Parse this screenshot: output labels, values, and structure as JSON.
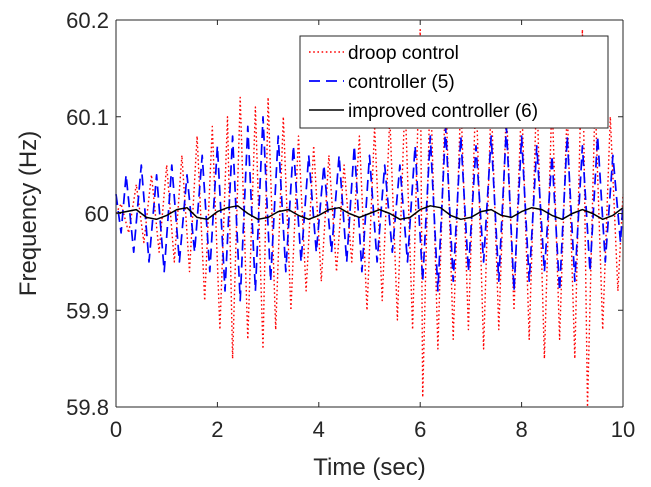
{
  "chart_data": {
    "type": "line",
    "title": "",
    "xlabel": "Time (sec)",
    "ylabel": "Frequency (Hz)",
    "xlim": [
      0,
      10
    ],
    "ylim": [
      59.8,
      60.2
    ],
    "xticks": [
      0,
      2,
      4,
      6,
      8,
      10
    ],
    "yticks": [
      59.8,
      59.9,
      60,
      60.1,
      60.2
    ],
    "xtick_labels": [
      "0",
      "2",
      "4",
      "6",
      "8",
      "10"
    ],
    "ytick_labels": [
      "59.8",
      "59.9",
      "60",
      "60.1",
      "60.2"
    ],
    "grid": false,
    "legend_position": "top-right",
    "series": [
      {
        "name": "droop control",
        "color": "#ff0000",
        "style": "dotted",
        "x": [
          0,
          0.1,
          0.25,
          0.4,
          0.55,
          0.7,
          0.85,
          1.0,
          1.15,
          1.3,
          1.45,
          1.6,
          1.75,
          1.9,
          2.05,
          2.2,
          2.3,
          2.45,
          2.6,
          2.75,
          2.9,
          3.0,
          3.15,
          3.3,
          3.45,
          3.6,
          3.75,
          3.9,
          4.05,
          4.2,
          4.35,
          4.5,
          4.65,
          4.8,
          4.95,
          5.1,
          5.25,
          5.4,
          5.55,
          5.7,
          5.85,
          6.0,
          6.05,
          6.2,
          6.35,
          6.5,
          6.65,
          6.8,
          6.95,
          7.1,
          7.25,
          7.4,
          7.55,
          7.7,
          7.85,
          8.0,
          8.15,
          8.3,
          8.45,
          8.6,
          8.75,
          8.9,
          9.05,
          9.2,
          9.3,
          9.45,
          9.6,
          9.75,
          9.9,
          10.0
        ],
        "y": [
          60.0,
          60.01,
          59.98,
          60.03,
          59.97,
          60.04,
          59.96,
          60.05,
          59.95,
          60.06,
          59.94,
          60.08,
          59.91,
          60.09,
          59.88,
          60.1,
          59.85,
          60.12,
          59.87,
          60.11,
          59.86,
          60.12,
          59.88,
          60.1,
          59.9,
          60.08,
          59.92,
          60.07,
          59.93,
          60.06,
          59.94,
          60.05,
          59.95,
          60.08,
          59.9,
          60.09,
          59.91,
          60.1,
          59.89,
          60.12,
          59.88,
          60.19,
          59.81,
          60.14,
          59.86,
          60.13,
          59.87,
          60.12,
          59.88,
          60.13,
          59.86,
          60.12,
          59.88,
          60.11,
          59.9,
          60.12,
          59.87,
          60.13,
          59.85,
          60.12,
          59.87,
          60.11,
          59.85,
          60.19,
          59.8,
          60.12,
          59.88,
          60.1,
          59.92,
          60.02
        ]
      },
      {
        "name": "controller (5)",
        "color": "#0000ff",
        "style": "dashed",
        "x": [
          0,
          0.1,
          0.2,
          0.35,
          0.5,
          0.65,
          0.8,
          0.95,
          1.1,
          1.25,
          1.4,
          1.55,
          1.7,
          1.85,
          2.0,
          2.15,
          2.3,
          2.45,
          2.6,
          2.75,
          2.9,
          3.05,
          3.2,
          3.35,
          3.5,
          3.65,
          3.8,
          3.95,
          4.1,
          4.25,
          4.4,
          4.55,
          4.7,
          4.85,
          5.0,
          5.15,
          5.3,
          5.45,
          5.6,
          5.75,
          5.9,
          6.05,
          6.2,
          6.35,
          6.5,
          6.65,
          6.8,
          6.95,
          7.1,
          7.25,
          7.4,
          7.55,
          7.7,
          7.85,
          8.0,
          8.15,
          8.3,
          8.45,
          8.6,
          8.75,
          8.9,
          9.05,
          9.2,
          9.35,
          9.5,
          9.65,
          9.8,
          9.95,
          10.0
        ],
        "y": [
          60.02,
          59.98,
          60.04,
          59.96,
          60.05,
          59.95,
          60.04,
          59.94,
          60.05,
          59.95,
          60.04,
          59.96,
          60.06,
          59.94,
          60.07,
          59.92,
          60.08,
          59.91,
          60.09,
          59.92,
          60.1,
          59.93,
          60.08,
          59.94,
          60.07,
          59.95,
          60.06,
          59.96,
          60.05,
          59.96,
          60.06,
          59.95,
          60.07,
          59.94,
          60.06,
          59.95,
          60.05,
          59.96,
          60.05,
          59.95,
          60.07,
          59.93,
          60.08,
          59.92,
          60.09,
          59.93,
          60.08,
          59.94,
          60.07,
          59.95,
          60.08,
          59.93,
          60.09,
          59.92,
          60.08,
          59.93,
          60.07,
          59.94,
          60.06,
          59.92,
          60.08,
          59.93,
          60.07,
          59.94,
          60.08,
          59.95,
          60.06,
          59.97,
          60.01
        ]
      },
      {
        "name": "improved controller (6)",
        "color": "#000000",
        "style": "solid",
        "x": [
          0,
          0.2,
          0.4,
          0.6,
          0.8,
          1.0,
          1.2,
          1.4,
          1.6,
          1.8,
          2.0,
          2.2,
          2.4,
          2.6,
          2.8,
          3.0,
          3.2,
          3.4,
          3.6,
          3.8,
          4.0,
          4.2,
          4.4,
          4.6,
          4.8,
          5.0,
          5.2,
          5.4,
          5.6,
          5.8,
          6.0,
          6.2,
          6.4,
          6.6,
          6.8,
          7.0,
          7.2,
          7.4,
          7.6,
          7.8,
          8.0,
          8.2,
          8.4,
          8.6,
          8.8,
          9.0,
          9.2,
          9.4,
          9.6,
          9.8,
          10.0
        ],
        "y": [
          60.0,
          60.002,
          60.004,
          59.996,
          59.994,
          59.998,
          60.004,
          60.006,
          59.996,
          59.994,
          60.002,
          60.006,
          60.008,
          60.0,
          59.994,
          59.996,
          60.002,
          60.004,
          59.998,
          59.994,
          59.998,
          60.004,
          60.006,
          60.0,
          59.996,
          60.0,
          60.004,
          60.0,
          59.994,
          59.996,
          60.004,
          60.008,
          60.006,
          59.998,
          59.994,
          59.996,
          60.002,
          60.004,
          59.998,
          59.996,
          60.002,
          60.006,
          60.004,
          59.998,
          59.994,
          60.0,
          60.004,
          60.0,
          59.994,
          59.998,
          60.006
        ]
      }
    ]
  }
}
